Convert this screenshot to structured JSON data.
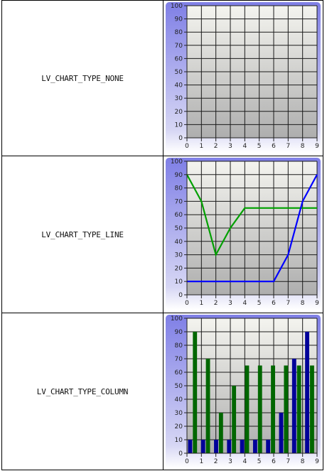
{
  "rows": [
    {
      "label": "LV_CHART_TYPE_NONE",
      "chart_data": {
        "type": "none",
        "x_ticks": [
          "0",
          "1",
          "2",
          "3",
          "4",
          "5",
          "6",
          "7",
          "8",
          "9"
        ],
        "y_ticks": [
          "0",
          "10",
          "20",
          "30",
          "40",
          "50",
          "60",
          "70",
          "80",
          "90",
          "100"
        ],
        "ylim": [
          0,
          100
        ],
        "xlim": [
          0,
          9
        ],
        "grid": true,
        "series": []
      }
    },
    {
      "label": "LV_CHART_TYPE_LINE",
      "chart_data": {
        "type": "line",
        "x_ticks": [
          "0",
          "1",
          "2",
          "3",
          "4",
          "5",
          "6",
          "7",
          "8",
          "9"
        ],
        "y_ticks": [
          "0",
          "10",
          "20",
          "30",
          "40",
          "50",
          "60",
          "70",
          "80",
          "90",
          "100"
        ],
        "ylim": [
          0,
          100
        ],
        "xlim": [
          0,
          9
        ],
        "grid": true,
        "series": [
          {
            "color": "#00a000",
            "values": [
              90,
              70,
              30,
              50,
              65,
              65,
              65,
              65,
              65,
              65
            ]
          },
          {
            "color": "#0000ff",
            "values": [
              10,
              10,
              10,
              10,
              10,
              10,
              10,
              30,
              70,
              90
            ]
          }
        ]
      }
    },
    {
      "label": "LV_CHART_TYPE_COLUMN",
      "chart_data": {
        "type": "bar",
        "x_ticks": [
          "0",
          "1",
          "2",
          "3",
          "4",
          "5",
          "6",
          "7",
          "8",
          "9"
        ],
        "y_ticks": [
          "0",
          "10",
          "20",
          "30",
          "40",
          "50",
          "60",
          "70",
          "80",
          "90",
          "100"
        ],
        "ylim": [
          0,
          100
        ],
        "xlim": [
          0,
          9
        ],
        "grid": true,
        "series": [
          {
            "color": "#000099",
            "values": [
              10,
              10,
              10,
              10,
              10,
              10,
              10,
              30,
              70,
              90
            ]
          },
          {
            "color": "#006600",
            "values": [
              90,
              70,
              30,
              50,
              65,
              65,
              65,
              65,
              65,
              65
            ]
          }
        ]
      }
    }
  ]
}
